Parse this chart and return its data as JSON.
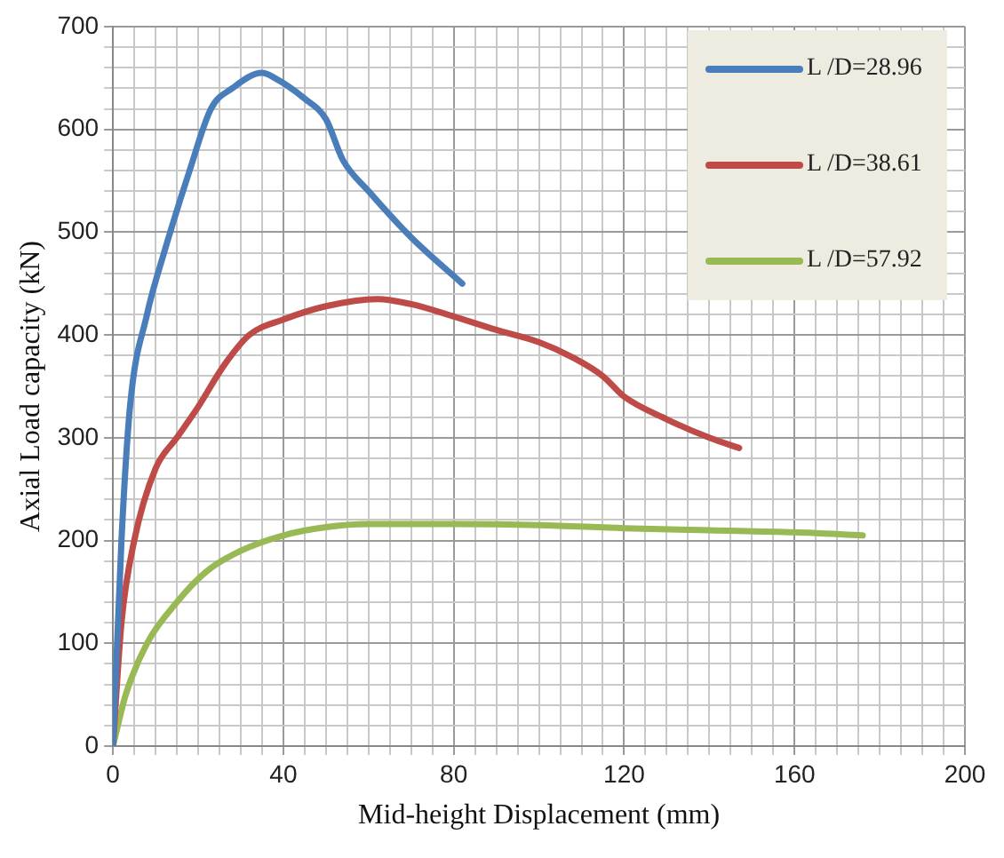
{
  "chart_data": {
    "type": "line",
    "xlabel": "Mid-height Displacement (mm)",
    "ylabel": "Axial Load capacity (kN)",
    "legend": "top right",
    "grid": true,
    "marker": "none",
    "line_style": "solid",
    "xlim": [
      0,
      200
    ],
    "ylim": [
      0,
      700
    ],
    "xticks": [
      0,
      {
        "value": 5,
        "label": null
      },
      {
        "value": 10,
        "label": null
      },
      {
        "value": 15,
        "label": null
      },
      {
        "value": 20,
        "label": null
      },
      {
        "value": 25,
        "label": null
      },
      {
        "value": 30,
        "label": null
      },
      {
        "value": 35,
        "label": null
      },
      40,
      {
        "value": 45,
        "label": null
      },
      {
        "value": 50,
        "label": null
      },
      {
        "value": 55,
        "label": null
      },
      {
        "value": 60,
        "label": null
      },
      {
        "value": 65,
        "label": null
      },
      {
        "value": 70,
        "label": null
      },
      {
        "value": 75,
        "label": null
      },
      80,
      {
        "value": 85,
        "label": null
      },
      {
        "value": 90,
        "label": null
      },
      {
        "value": 95,
        "label": null
      },
      {
        "value": 100,
        "label": null
      },
      {
        "value": 105,
        "label": null
      },
      {
        "value": 110,
        "label": null
      },
      {
        "value": 115,
        "label": null
      },
      120,
      {
        "value": 125,
        "label": null
      },
      {
        "value": 130,
        "label": null
      },
      {
        "value": 135,
        "label": null
      },
      {
        "value": 140,
        "label": null
      },
      {
        "value": 145,
        "label": null
      },
      {
        "value": 150,
        "label": null
      },
      {
        "value": 155,
        "label": null
      },
      160,
      {
        "value": 165,
        "label": null
      },
      {
        "value": 170,
        "label": null
      },
      {
        "value": 175,
        "label": null
      },
      {
        "value": 180,
        "label": null
      },
      {
        "value": 185,
        "label": null
      },
      {
        "value": 190,
        "label": null
      },
      {
        "value": 195,
        "label": null
      },
      200
    ],
    "yticks": [
      0,
      {
        "value": 20,
        "label": null
      },
      {
        "value": 40,
        "label": null
      },
      {
        "value": 60,
        "label": null
      },
      {
        "value": 80,
        "label": null
      },
      100,
      {
        "value": 120,
        "label": null
      },
      {
        "value": 140,
        "label": null
      },
      {
        "value": 160,
        "label": null
      },
      {
        "value": 180,
        "label": null
      },
      200,
      {
        "value": 220,
        "label": null
      },
      {
        "value": 240,
        "label": null
      },
      {
        "value": 260,
        "label": null
      },
      {
        "value": 280,
        "label": null
      },
      300,
      {
        "value": 320,
        "label": null
      },
      {
        "value": 340,
        "label": null
      },
      {
        "value": 360,
        "label": null
      },
      {
        "value": 380,
        "label": null
      },
      400,
      {
        "value": 420,
        "label": null
      },
      {
        "value": 440,
        "label": null
      },
      {
        "value": 460,
        "label": null
      },
      {
        "value": 480,
        "label": null
      },
      500,
      {
        "value": 520,
        "label": null
      },
      {
        "value": 540,
        "label": null
      },
      {
        "value": 560,
        "label": null
      },
      {
        "value": 580,
        "label": null
      },
      600,
      {
        "value": 620,
        "label": null
      },
      {
        "value": 640,
        "label": null
      },
      {
        "value": 660,
        "label": null
      },
      {
        "value": 680,
        "label": null
      },
      700
    ],
    "series": [
      {
        "name": "L /D=28.96",
        "color": "#4a7ebb",
        "x": [
          0,
          2,
          4,
          8,
          12,
          18,
          23,
          28,
          35,
          38,
          45,
          50,
          54,
          60,
          70,
          82
        ],
        "values": [
          0,
          200,
          330,
          420,
          480,
          560,
          620,
          640,
          655,
          650,
          630,
          610,
          570,
          540,
          495,
          450
        ]
      },
      {
        "name": "L /D=38.61",
        "color": "#be4b48",
        "x": [
          0,
          2,
          5,
          10,
          15,
          20,
          26,
          32,
          40,
          50,
          62,
          70,
          80,
          90,
          100,
          108,
          115,
          120,
          130,
          140,
          147
        ],
        "values": [
          0,
          120,
          200,
          270,
          300,
          330,
          370,
          400,
          415,
          428,
          435,
          430,
          418,
          405,
          393,
          378,
          360,
          340,
          318,
          300,
          290
        ]
      },
      {
        "name": "L /D=57.92",
        "color": "#98b954",
        "x": [
          0,
          3,
          8,
          15,
          22,
          30,
          40,
          50,
          60,
          80,
          100,
          120,
          140,
          160,
          176
        ],
        "values": [
          0,
          50,
          100,
          140,
          170,
          190,
          205,
          213,
          216,
          216,
          215,
          212,
          210,
          208,
          205
        ]
      }
    ]
  }
}
